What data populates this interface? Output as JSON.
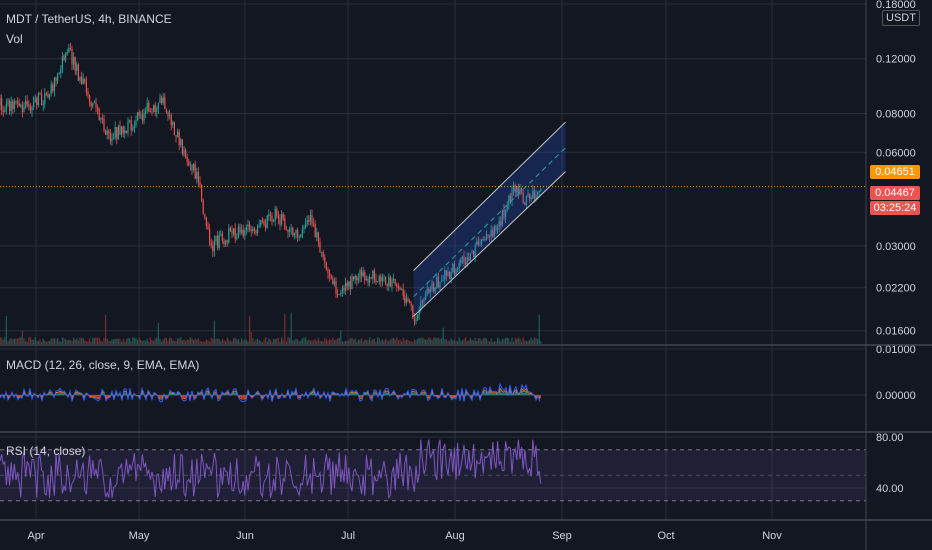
{
  "header": {
    "symbol_line": "MDT / TetherUS, 4h, BINANCE",
    "vol_label": "Vol"
  },
  "currency": "USDT",
  "price_badges": {
    "last": "0.04651",
    "bid": "0.04467",
    "countdown": "03:25:24"
  },
  "colors": {
    "background": "#131722",
    "up": "#26a69a",
    "down": "#ef5350",
    "macd": "#2962ff",
    "signal": "#ff6d00",
    "rsi": "#7e57c2",
    "channel": "#2962ff",
    "last_price": "#ff9800",
    "countdown_bg": "#ef5350"
  },
  "chart_data": [
    {
      "type": "candlestick",
      "title": "MDT / TetherUS, 4h, BINANCE",
      "y_scale": "log",
      "y_ticks": [
        "0.18000",
        "0.12000",
        "0.08000",
        "0.06000",
        "0.03000",
        "0.02200",
        "0.01600"
      ],
      "x_ticks": [
        "Apr",
        "May",
        "Jun",
        "Jul",
        "Aug",
        "Sep",
        "Oct",
        "Nov"
      ],
      "trend_points": [
        {
          "date": "Mar 28",
          "price": 0.085
        },
        {
          "date": "Apr 5",
          "price": 0.092
        },
        {
          "date": "Apr 10",
          "price": 0.13
        },
        {
          "date": "Apr 16",
          "price": 0.092
        },
        {
          "date": "Apr 22",
          "price": 0.068
        },
        {
          "date": "Apr 28",
          "price": 0.072
        },
        {
          "date": "May 3",
          "price": 0.082
        },
        {
          "date": "May 8",
          "price": 0.088
        },
        {
          "date": "May 12",
          "price": 0.068
        },
        {
          "date": "May 18",
          "price": 0.05
        },
        {
          "date": "May 22",
          "price": 0.03
        },
        {
          "date": "May 28",
          "price": 0.033
        },
        {
          "date": "Jun 4",
          "price": 0.034
        },
        {
          "date": "Jun 10",
          "price": 0.038
        },
        {
          "date": "Jun 16",
          "price": 0.032
        },
        {
          "date": "Jun 20",
          "price": 0.038
        },
        {
          "date": "Jun 24",
          "price": 0.027
        },
        {
          "date": "Jun 28",
          "price": 0.021
        },
        {
          "date": "Jul 4",
          "price": 0.024
        },
        {
          "date": "Jul 10",
          "price": 0.024
        },
        {
          "date": "Jul 16",
          "price": 0.0225
        },
        {
          "date": "Jul 20",
          "price": 0.0178
        },
        {
          "date": "Jul 26",
          "price": 0.0225
        },
        {
          "date": "Aug 2",
          "price": 0.026
        },
        {
          "date": "Aug 8",
          "price": 0.03
        },
        {
          "date": "Aug 14",
          "price": 0.036
        },
        {
          "date": "Aug 18",
          "price": 0.046
        },
        {
          "date": "Aug 22",
          "price": 0.042
        },
        {
          "date": "Aug 26",
          "price": 0.0455
        }
      ],
      "channel": {
        "start": "Jul 20",
        "end": "Sep 2",
        "lower": [
          0.0178,
          0.052
        ],
        "middle": [
          0.0206,
          0.062
        ],
        "upper": [
          0.025,
          0.075
        ]
      },
      "last_price": 0.04651
    },
    {
      "type": "bar",
      "title": "Vol"
    },
    {
      "type": "line",
      "title": "MACD (12, 26, close, 9, EMA, EMA)",
      "y_ticks": [
        "0.01000",
        "0.00000"
      ],
      "series": [
        {
          "name": "MACD"
        },
        {
          "name": "Signal"
        }
      ]
    },
    {
      "type": "line",
      "title": "RSI (14, close)",
      "y_ticks": [
        "80.00",
        "40.00"
      ],
      "band": [
        30,
        70
      ]
    }
  ]
}
